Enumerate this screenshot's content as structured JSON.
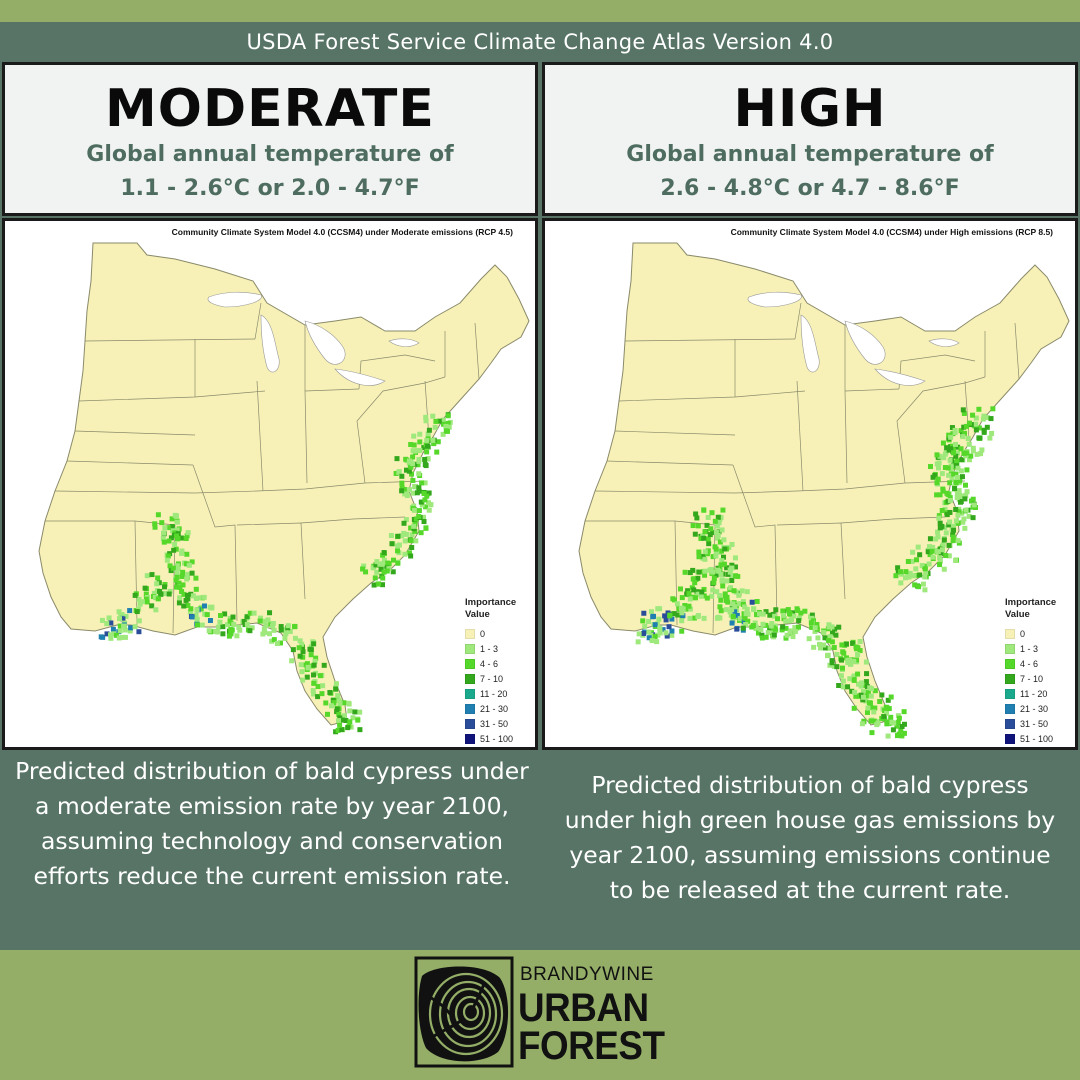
{
  "header": {
    "text": "USDA Forest Service Climate Change Atlas Version  4.0"
  },
  "panels": [
    {
      "scenario": "MODERATE",
      "temp_line1": "Global annual temperature of",
      "temp_line2": "1.1 - 2.6°C or 2.0 - 4.7°F",
      "map_title": "Community Climate System Model 4.0 (CCSM4) under Moderate emissions (RCP 4.5)",
      "caption": "Predicted distribution of bald cypress under a moderate emission rate by year 2100, assuming technology and conservation efforts reduce the current emission rate."
    },
    {
      "scenario": "HIGH",
      "temp_line1": "Global annual temperature of",
      "temp_line2": "2.6 - 4.8°C or 4.7 - 8.6°F",
      "map_title": "Community Climate System Model 4.0 (CCSM4) under High emissions (RCP 8.5)",
      "caption": "Predicted distribution of bald cypress under high green house gas emissions by year 2100, assuming emissions continue to be released at the current rate."
    }
  ],
  "legend": {
    "title_line1": "Importance",
    "title_line2": "Value",
    "classes": [
      {
        "label": "0",
        "color": "#f7f1b8"
      },
      {
        "label": "1 - 3",
        "color": "#9ee87c"
      },
      {
        "label": "4 - 6",
        "color": "#55d82a"
      },
      {
        "label": "7 - 10",
        "color": "#33a81c"
      },
      {
        "label": "11 - 20",
        "color": "#1aa98c"
      },
      {
        "label": "21 - 30",
        "color": "#1f7fb0"
      },
      {
        "label": "31 - 50",
        "color": "#2a4d9a"
      },
      {
        "label": "51 - 100",
        "color": "#10147a"
      }
    ]
  },
  "logo": {
    "line1": "BRANDYWINE",
    "line2": "URBAN",
    "line3": "FOREST",
    "icon": "tree-rings-icon"
  },
  "colors": {
    "background": "#94ae67",
    "band": "#577466",
    "title_box": "#f0f3f1",
    "temp_text": "#4e6d60",
    "land": "#f7f1b8",
    "water": "#ffffff",
    "border_lines": "#8a8a6a"
  }
}
